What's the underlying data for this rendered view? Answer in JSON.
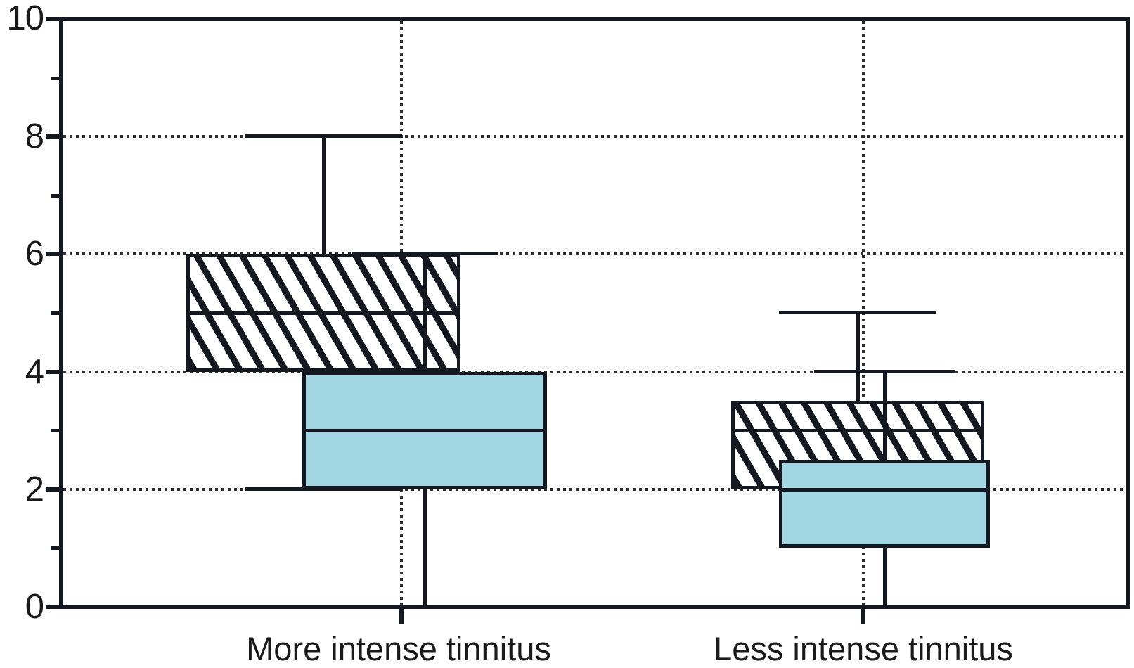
{
  "chart_data": {
    "type": "boxplot",
    "title": "",
    "xlabel": "",
    "ylabel": "",
    "categories": [
      "More intense tinnitus",
      "Less intense tinnitus"
    ],
    "y_tick_labels": [
      "0",
      "2",
      "4",
      "6",
      "8",
      "10"
    ],
    "ylim": [
      0,
      10
    ],
    "yticks_major": [
      0,
      2,
      4,
      6,
      8,
      10
    ],
    "yticks_minor": [
      1,
      3,
      5,
      7,
      9
    ],
    "grid": {
      "horizontal_dotted_at": [
        2,
        4,
        6,
        8
      ],
      "vertical_dotted_at_category_centers": true,
      "style": "dotted"
    },
    "legend": "none",
    "series": [
      {
        "name": "hatched-box",
        "fill": "diagonal-hatch",
        "boxes": [
          {
            "category": "More intense tinnitus",
            "whisker_low": 2,
            "q1": 4,
            "median": 5,
            "q3": 6,
            "whisker_high": 8
          },
          {
            "category": "Less intense tinnitus",
            "whisker_low": null,
            "q1": 2,
            "median": 3,
            "q3": 3.5,
            "whisker_high": 5
          }
        ]
      },
      {
        "name": "blue-box",
        "fill": "#A1D6E2",
        "boxes": [
          {
            "category": "More intense tinnitus",
            "whisker_low": 0,
            "q1": 2,
            "median": 3,
            "q3": 4,
            "whisker_high": 6
          },
          {
            "category": "Less intense tinnitus",
            "whisker_low": 0,
            "q1": 1,
            "median": 2,
            "q3": 2.5,
            "whisker_high": 4
          }
        ]
      }
    ],
    "colors": {
      "blue_fill": "#A1D6E2",
      "line": "#131821",
      "grid_dots": "#2e2e2e",
      "text": "#1a1a1a",
      "background": "#ffffff"
    }
  }
}
